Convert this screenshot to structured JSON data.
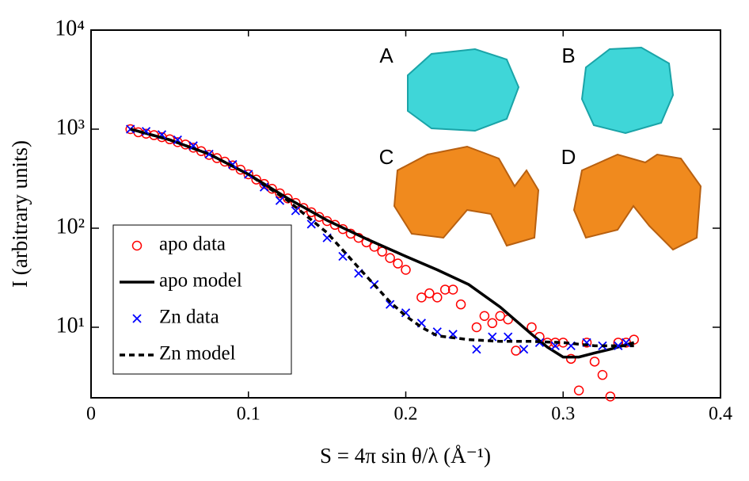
{
  "chart_data": {
    "type": "line",
    "x_label": "S = 4π sin θ/λ (Å⁻¹)",
    "y_label": "I (arbitrary units)",
    "log_y": true,
    "xlim": [
      0,
      0.4
    ],
    "ylim": [
      1.94,
      10000
    ],
    "xticks": [
      0,
      0.1,
      0.2,
      0.3,
      0.4
    ],
    "yticks": [
      {
        "value": 10,
        "label": "10¹"
      },
      {
        "value": 100,
        "label": "10²"
      },
      {
        "value": 1000,
        "label": "10³"
      },
      {
        "value": 10000,
        "label": "10⁴"
      }
    ],
    "legend": "lower left",
    "annotations": [
      "A",
      "B",
      "C",
      "D"
    ],
    "series": [
      {
        "name": "apo data",
        "color": "#ff0000",
        "style": "circle",
        "x": [
          0.025,
          0.03,
          0.035,
          0.04,
          0.045,
          0.05,
          0.055,
          0.06,
          0.065,
          0.07,
          0.075,
          0.08,
          0.085,
          0.09,
          0.095,
          0.1,
          0.105,
          0.11,
          0.115,
          0.12,
          0.125,
          0.13,
          0.135,
          0.14,
          0.145,
          0.15,
          0.155,
          0.16,
          0.165,
          0.17,
          0.175,
          0.18,
          0.185,
          0.19,
          0.195,
          0.2,
          0.21,
          0.215,
          0.22,
          0.225,
          0.23,
          0.235,
          0.245,
          0.25,
          0.255,
          0.26,
          0.265,
          0.27,
          0.28,
          0.285,
          0.29,
          0.295,
          0.3,
          0.305,
          0.31,
          0.315,
          0.32,
          0.325,
          0.33,
          0.335,
          0.34,
          0.345
        ],
        "values": [
          1000,
          930,
          900,
          870,
          830,
          790,
          740,
          700,
          650,
          600,
          550,
          510,
          470,
          430,
          390,
          350,
          310,
          280,
          250,
          225,
          200,
          180,
          160,
          145,
          130,
          118,
          108,
          98,
          88,
          80,
          72,
          65,
          58,
          50,
          44,
          38,
          20,
          22,
          20,
          24,
          24,
          17,
          10,
          13,
          11,
          13,
          12,
          5.8,
          10,
          8,
          7,
          7,
          7,
          4.8,
          2.3,
          7,
          4.5,
          3.3,
          2,
          7,
          7,
          7.5
        ]
      },
      {
        "name": "apo model",
        "color": "#000000",
        "style": "solid",
        "x": [
          0.025,
          0.05,
          0.075,
          0.1,
          0.125,
          0.15,
          0.175,
          0.2,
          0.22,
          0.24,
          0.26,
          0.28,
          0.29,
          0.3,
          0.31,
          0.32,
          0.33,
          0.345
        ],
        "values": [
          1000,
          780,
          560,
          350,
          200,
          120,
          78,
          52,
          38,
          27,
          16,
          8.5,
          6.3,
          5,
          5,
          5.5,
          6,
          7
        ]
      },
      {
        "name": "Zn data",
        "color": "#0000ff",
        "style": "cross",
        "x": [
          0.025,
          0.035,
          0.045,
          0.055,
          0.065,
          0.075,
          0.09,
          0.1,
          0.11,
          0.12,
          0.13,
          0.14,
          0.15,
          0.16,
          0.17,
          0.18,
          0.19,
          0.2,
          0.21,
          0.22,
          0.23,
          0.245,
          0.255,
          0.265,
          0.275,
          0.285,
          0.295,
          0.305,
          0.315,
          0.325,
          0.335,
          0.34
        ],
        "values": [
          1000,
          950,
          880,
          780,
          680,
          560,
          440,
          350,
          260,
          190,
          150,
          110,
          80,
          52,
          35,
          27,
          17,
          14,
          11,
          9,
          8.5,
          6,
          8,
          8,
          6,
          7,
          6.5,
          6.5,
          7,
          6.5,
          6.5,
          7
        ]
      },
      {
        "name": "Zn model",
        "color": "#000000",
        "style": "dashed",
        "x": [
          0.025,
          0.05,
          0.075,
          0.1,
          0.125,
          0.15,
          0.17,
          0.19,
          0.2,
          0.21,
          0.22,
          0.24,
          0.26,
          0.28,
          0.3,
          0.32,
          0.345
        ],
        "values": [
          1000,
          780,
          560,
          350,
          190,
          90,
          40,
          18,
          13,
          10,
          8.2,
          7.5,
          7.2,
          7.2,
          7,
          6.5,
          6.5
        ]
      }
    ]
  }
}
